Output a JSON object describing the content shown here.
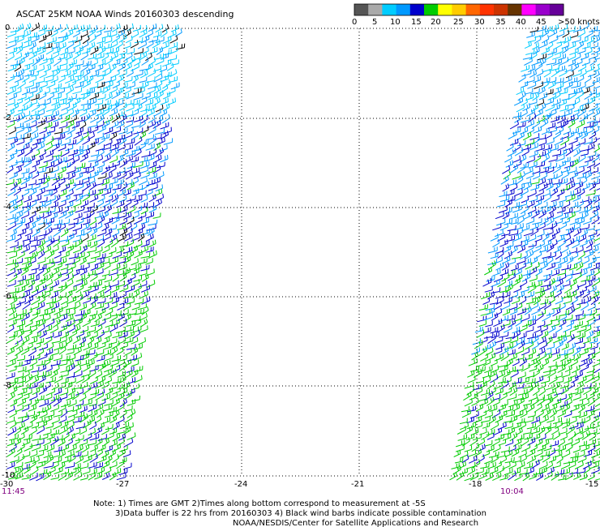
{
  "title": "ASCAT 25KM NOAA Winds 20160303 descending",
  "colorbar": {
    "colors": [
      "#555555",
      "#aaaaaa",
      "#00ccff",
      "#0099ff",
      "#0000cc",
      "#00cc00",
      "#ffff00",
      "#ffcc00",
      "#ff6600",
      "#ff3300",
      "#cc3300",
      "#663300",
      "#ff00ff",
      "#9900cc",
      "#660099"
    ],
    "labels": [
      "0",
      "5",
      "10",
      "15",
      "20",
      "25",
      "30",
      "35",
      "40",
      "45",
      ">50 knots"
    ]
  },
  "axes": {
    "x_ticks": [
      "-30",
      "-27",
      "-24",
      "-21",
      "-18",
      "-15"
    ],
    "y_ticks": [
      "0",
      "-2",
      "-4",
      "-6",
      "-8",
      "-10"
    ]
  },
  "swaths": [
    {
      "time": "11:45"
    },
    {
      "time": "10:04"
    }
  ],
  "notes": {
    "line1": "Note: 1) Times are GMT 2)Times along bottom correspond to measurement at -5S",
    "line2": "3)Data buffer is 22 hrs from 20160303 4) Black wind barbs indicate possible contamination",
    "line3": "NOAA/NESDIS/Center for Satellite Applications and Research"
  },
  "barb_colors": {
    "cyan": "#00ccff",
    "lightblue": "#0099ff",
    "blue": "#0000cc",
    "green": "#00cc00",
    "black": "#000000"
  }
}
